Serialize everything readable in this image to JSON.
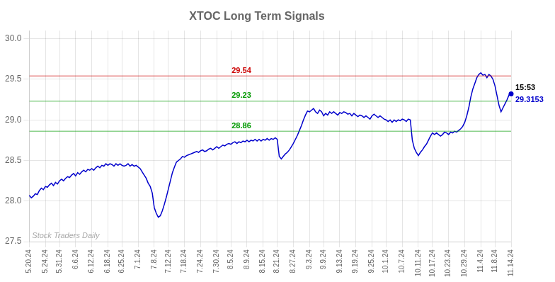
{
  "chart_data": {
    "type": "line",
    "title": "XTOC Long Term Signals",
    "categories": [
      "5.20.24",
      null,
      null,
      null,
      null,
      null,
      null,
      null,
      "5.24.24",
      null,
      null,
      null,
      null,
      null,
      null,
      "5.31.24",
      null,
      null,
      null,
      null,
      null,
      null,
      null,
      "6.6.24",
      null,
      null,
      null,
      null,
      null,
      null,
      null,
      "6.12.24",
      null,
      null,
      null,
      null,
      null,
      null,
      null,
      "6.18.24",
      null,
      null,
      null,
      null,
      null,
      null,
      "6.25.24",
      null,
      null,
      null,
      null,
      null,
      null,
      null,
      "7.1.24",
      null,
      null,
      null,
      null,
      null,
      null,
      null,
      "7.8.24",
      null,
      null,
      null,
      null,
      null,
      null,
      "7.12.24",
      null,
      null,
      null,
      null,
      null,
      null,
      null,
      "7.18.24",
      null,
      null,
      null,
      null,
      null,
      null,
      null,
      "7.24.24",
      null,
      null,
      null,
      null,
      null,
      null,
      null,
      "7.30.24",
      null,
      null,
      null,
      null,
      null,
      null,
      "8.5.24",
      null,
      null,
      null,
      null,
      null,
      null,
      null,
      "8.9.24",
      null,
      null,
      null,
      null,
      null,
      null,
      null,
      "8.15.24",
      null,
      null,
      null,
      null,
      null,
      null,
      "8.21.24",
      null,
      null,
      null,
      null,
      null,
      null,
      null,
      "8.27.24",
      null,
      null,
      null,
      null,
      null,
      null,
      null,
      "9.3.24",
      null,
      null,
      null,
      null,
      null,
      null,
      "9.9.24",
      null,
      null,
      null,
      null,
      null,
      null,
      null,
      "9.13.24",
      null,
      null,
      null,
      null,
      null,
      null,
      null,
      "9.19.24",
      null,
      null,
      null,
      null,
      null,
      null,
      null,
      "9.25.24",
      null,
      null,
      null,
      null,
      null,
      null,
      "10.1.24",
      null,
      null,
      null,
      null,
      null,
      null,
      null,
      "10.7.24",
      null,
      null,
      null,
      null,
      null,
      null,
      null,
      "10.11.24",
      null,
      null,
      null,
      null,
      null,
      null,
      "10.17.24",
      null,
      null,
      null,
      null,
      null,
      null,
      null,
      "10.23.24",
      null,
      null,
      null,
      null,
      null,
      null,
      null,
      "10.29.24",
      null,
      null,
      null,
      null,
      null,
      null,
      null,
      "11.4.24",
      null,
      null,
      null,
      null,
      null,
      null,
      "11.8.24",
      null,
      null,
      null,
      null,
      null,
      null,
      null,
      "11.14.24"
    ],
    "values": [
      28.07,
      28.04,
      28.06,
      28.09,
      28.08,
      28.13,
      28.16,
      28.14,
      28.18,
      28.17,
      28.2,
      28.22,
      28.19,
      28.23,
      28.21,
      28.25,
      28.27,
      28.25,
      28.28,
      28.3,
      28.29,
      28.32,
      28.34,
      28.31,
      28.35,
      28.33,
      28.36,
      28.38,
      28.36,
      28.39,
      28.38,
      28.4,
      28.38,
      28.41,
      28.43,
      28.41,
      28.44,
      28.43,
      28.46,
      28.44,
      28.46,
      28.45,
      28.43,
      28.46,
      28.44,
      28.46,
      28.44,
      28.43,
      28.44,
      28.46,
      28.43,
      28.45,
      28.43,
      28.44,
      28.42,
      28.4,
      28.36,
      28.32,
      28.28,
      28.22,
      28.18,
      28.1,
      27.92,
      27.85,
      27.8,
      27.82,
      27.88,
      27.96,
      28.05,
      28.15,
      28.25,
      28.35,
      28.42,
      28.48,
      28.5,
      28.52,
      28.55,
      28.54,
      28.56,
      28.57,
      28.58,
      28.59,
      28.6,
      28.61,
      28.6,
      28.62,
      28.63,
      28.61,
      28.62,
      28.64,
      28.65,
      28.63,
      28.65,
      28.67,
      28.65,
      28.67,
      28.69,
      28.68,
      28.7,
      28.71,
      28.7,
      28.72,
      28.73,
      28.71,
      28.73,
      28.72,
      28.74,
      28.73,
      28.75,
      28.73,
      28.75,
      28.74,
      28.76,
      28.74,
      28.76,
      28.74,
      28.76,
      28.75,
      28.77,
      28.75,
      28.77,
      28.76,
      28.78,
      28.76,
      28.55,
      28.52,
      28.55,
      28.58,
      28.6,
      28.63,
      28.67,
      28.71,
      28.76,
      28.81,
      28.87,
      28.93,
      29.0,
      29.06,
      29.11,
      29.1,
      29.12,
      29.14,
      29.1,
      29.08,
      29.12,
      29.1,
      29.05,
      29.08,
      29.06,
      29.1,
      29.08,
      29.1,
      29.08,
      29.06,
      29.09,
      29.08,
      29.1,
      29.09,
      29.07,
      29.08,
      29.05,
      29.08,
      29.06,
      29.04,
      29.06,
      29.05,
      29.03,
      29.05,
      29.03,
      29.01,
      29.05,
      29.07,
      29.05,
      29.03,
      29.05,
      29.03,
      29.01,
      29.0,
      28.98,
      29.0,
      28.97,
      29.0,
      28.98,
      29.0,
      28.99,
      29.01,
      29.0,
      28.98,
      29.01,
      29.0,
      28.75,
      28.65,
      28.6,
      28.56,
      28.6,
      28.63,
      28.67,
      28.7,
      28.75,
      28.8,
      28.84,
      28.82,
      28.84,
      28.82,
      28.8,
      28.82,
      28.85,
      28.84,
      28.82,
      28.85,
      28.84,
      28.86,
      28.85,
      28.87,
      28.89,
      28.92,
      28.97,
      29.05,
      29.15,
      29.28,
      29.38,
      29.45,
      29.52,
      29.56,
      29.58,
      29.55,
      29.56,
      29.52,
      29.56,
      29.54,
      29.5,
      29.42,
      29.3,
      29.18,
      29.1,
      29.15,
      29.2,
      29.25,
      29.31,
      29.32
    ],
    "color": "#0000cc",
    "ylim": [
      27.5,
      30.1
    ],
    "yticks": [
      27.5,
      {
        "value": 28.0,
        "label": "28.0"
      },
      28.5,
      {
        "value": 29.0,
        "label": "29.0"
      },
      29.5,
      {
        "value": 30.0,
        "label": "30.0"
      }
    ],
    "grid": true,
    "hlines": [
      {
        "value": 29.54,
        "label": "29.54",
        "color": "#cc0000"
      },
      {
        "value": 29.23,
        "label": "29.23",
        "color": "#009900"
      },
      {
        "value": 28.86,
        "label": "28.86",
        "color": "#009900"
      }
    ],
    "annotations": [
      {
        "text": "15:53"
      },
      {
        "text": "29.3153",
        "color": "#0000cc"
      }
    ],
    "watermark": "Stock Traders Daily"
  }
}
